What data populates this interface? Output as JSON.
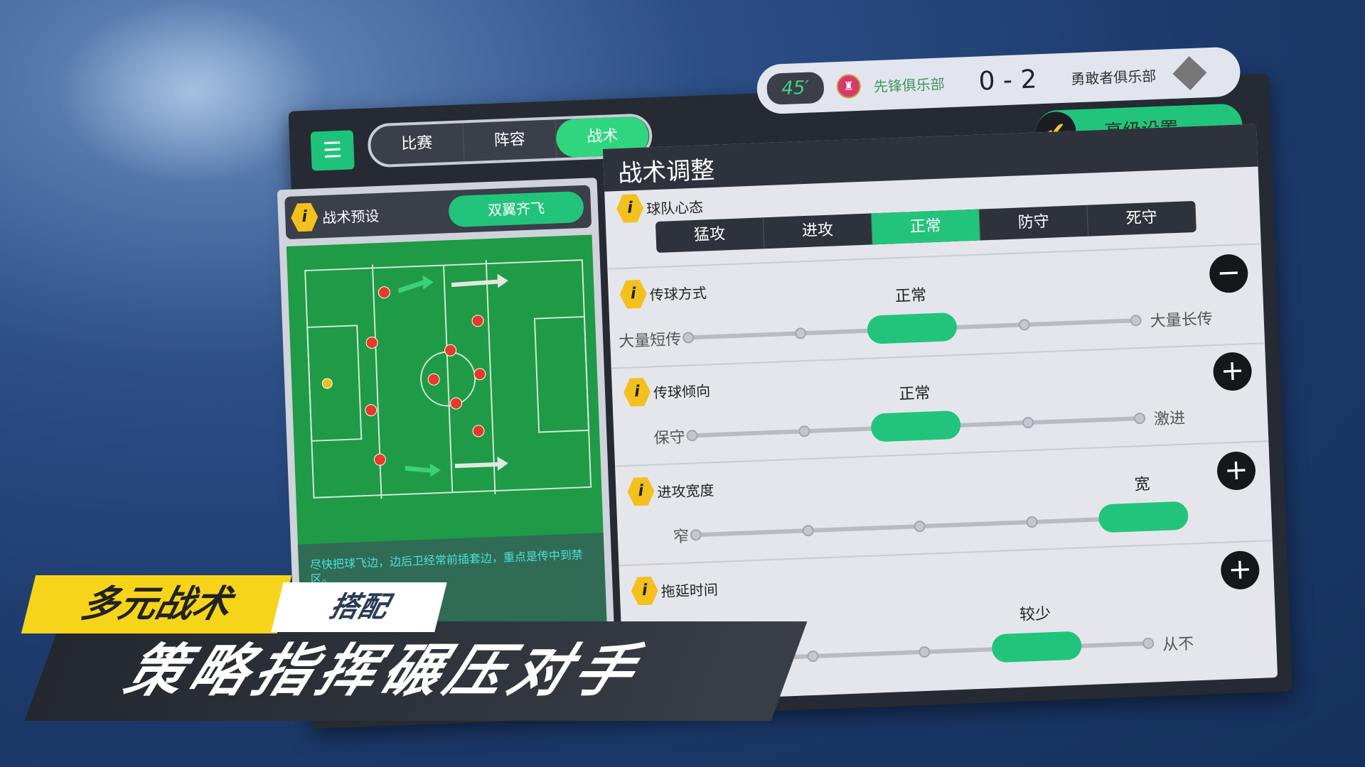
{
  "topbar": {
    "menu_icon": "hamburger-icon",
    "tabs": [
      "比赛",
      "阵容",
      "战术"
    ],
    "active_tab": 2
  },
  "scoreboard": {
    "minute": "45′",
    "home_team": "先锋俱乐部",
    "score": "0 - 2",
    "away_team": "勇敢者俱乐部"
  },
  "advanced_button": "高级设置",
  "preset": {
    "label": "战术预设",
    "value": "双翼齐飞",
    "description": "尽快把球飞边，边后卫经常前插套边，重点是传中到禁区。"
  },
  "tactics": {
    "title": "战术调整",
    "mentality": {
      "label": "球队心态",
      "options": [
        "猛攻",
        "进攻",
        "正常",
        "防守",
        "死守"
      ],
      "selected": 2
    },
    "sliders": [
      {
        "label": "传球方式",
        "low": "大量短传",
        "high": "大量长传",
        "selected_label": "正常",
        "level": 2,
        "steps": 5,
        "button": "minus"
      },
      {
        "label": "传球倾向",
        "low": "保守",
        "high": "激进",
        "selected_label": "正常",
        "level": 2,
        "steps": 5,
        "button": "plus"
      },
      {
        "label": "进攻宽度",
        "low": "窄",
        "high": "宽",
        "selected_label": "宽",
        "level": 4,
        "steps": 5,
        "button": "plus"
      },
      {
        "label": "拖延时间",
        "low": "",
        "high": "从不",
        "selected_label": "较少",
        "level": 3,
        "steps": 5,
        "button": "plus"
      }
    ]
  },
  "promo": {
    "tag1": "多元战术",
    "tag2": "搭配",
    "headline": "策略指挥碾压对手"
  },
  "colors": {
    "accent": "#22c47c",
    "info": "#f3c01d",
    "banner_yellow": "#f6d41a"
  }
}
